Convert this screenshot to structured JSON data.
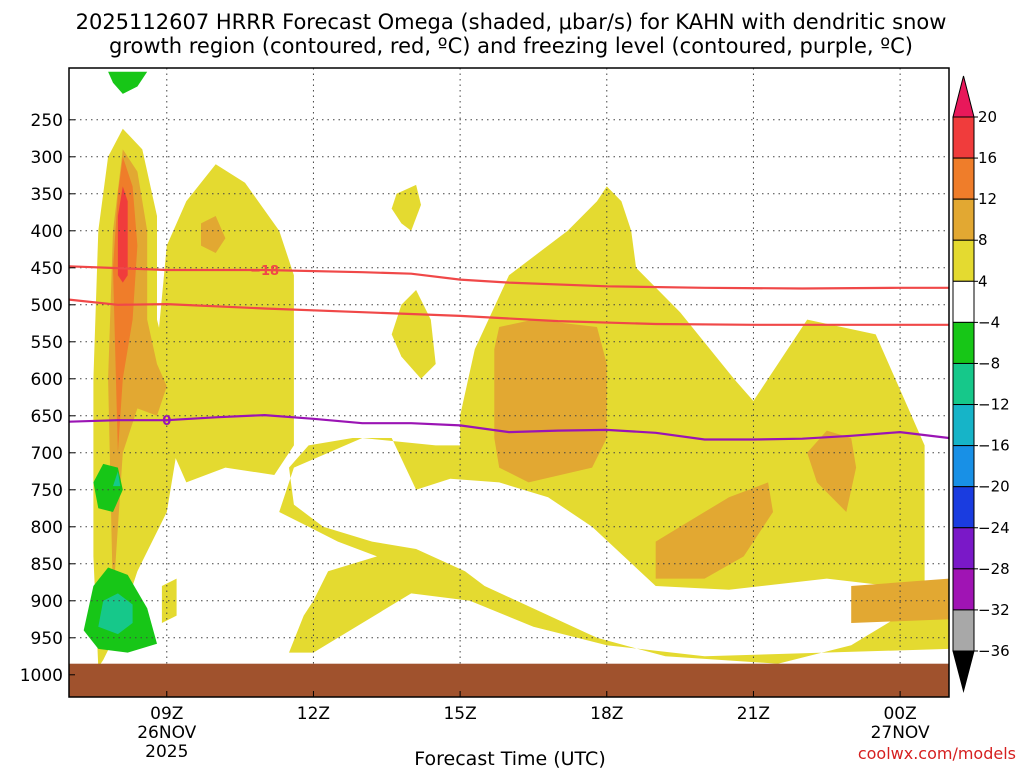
{
  "chart_data": {
    "type": "contour",
    "title_line1": "2025112607 HRRR Forecast Omega (shaded, μbar/s) for KAHN with dendritic snow",
    "title_line2": "growth region (contoured, red, ºC) and freezing level (contoured, purple, ºC)",
    "xlabel": "Forecast Time (UTC)",
    "ylabel": "",
    "x_unit": "hours after 07Z 26NOV2025",
    "xlim": [
      0,
      18
    ],
    "ylim": [
      1030,
      180
    ],
    "y_ticks": [
      250,
      300,
      350,
      400,
      450,
      500,
      550,
      600,
      650,
      700,
      750,
      800,
      850,
      900,
      950,
      1000
    ],
    "y_tick_labels": [
      "250",
      "300",
      "350",
      "400",
      "450",
      "500",
      "550",
      "600",
      "650",
      "700",
      "750",
      "800",
      "850",
      "900",
      "950",
      "1000"
    ],
    "x_ticks": [
      {
        "t": 2,
        "lines": [
          "09Z",
          "26NOV",
          "2025"
        ]
      },
      {
        "t": 5,
        "lines": [
          "12Z"
        ]
      },
      {
        "t": 8,
        "lines": [
          "15Z"
        ]
      },
      {
        "t": 11,
        "lines": [
          "18Z"
        ]
      },
      {
        "t": 14,
        "lines": [
          "21Z"
        ]
      },
      {
        "t": 17,
        "lines": [
          "00Z",
          "27NOV"
        ]
      }
    ],
    "ground_level_hpa": 985,
    "colorbar": {
      "labels": [
        "20",
        "16",
        "12",
        "8",
        "4",
        "−4",
        "−8",
        "−12",
        "−16",
        "−20",
        "−24",
        "−28",
        "−32",
        "−36"
      ],
      "colors": [
        "#e8185a",
        "#f03c3c",
        "#ef7d2a",
        "#e2a832",
        "#e4da30",
        "#ffffff",
        "#17c617",
        "#16c88a",
        "#16b4c8",
        "#1890e6",
        "#1a3ce0",
        "#7a18c8",
        "#a014b4",
        "#a8a8a8",
        "#000000"
      ]
    },
    "omega_regions": [
      {
        "level": "4 to 8",
        "color": "#e4da30",
        "points": [
          [
            0.6,
            990
          ],
          [
            0.5,
            840
          ],
          [
            0.5,
            600
          ],
          [
            0.6,
            400
          ],
          [
            0.8,
            300
          ],
          [
            1.1,
            262
          ],
          [
            1.5,
            290
          ],
          [
            1.8,
            380
          ],
          [
            1.8,
            520
          ],
          [
            2.1,
            600
          ],
          [
            2.2,
            700
          ],
          [
            2.0,
            780
          ],
          [
            1.4,
            860
          ],
          [
            1.0,
            940
          ],
          [
            0.7,
            980
          ]
        ]
      },
      {
        "level": "4 to 8",
        "color": "#e4da30",
        "points": [
          [
            2.0,
            420
          ],
          [
            2.4,
            360
          ],
          [
            3.0,
            310
          ],
          [
            3.6,
            335
          ],
          [
            4.3,
            400
          ],
          [
            4.6,
            460
          ],
          [
            4.6,
            690
          ],
          [
            4.2,
            730
          ],
          [
            3.2,
            720
          ],
          [
            2.4,
            740
          ],
          [
            2.0,
            680
          ],
          [
            1.8,
            560
          ]
        ]
      },
      {
        "level": "4 to 8",
        "color": "#e4da30",
        "points": [
          [
            6.7,
            350
          ],
          [
            7.1,
            338
          ],
          [
            7.2,
            365
          ],
          [
            7.0,
            400
          ],
          [
            6.8,
            390
          ],
          [
            6.6,
            370
          ]
        ]
      },
      {
        "level": "4 to 8",
        "color": "#e4da30",
        "points": [
          [
            6.8,
            500
          ],
          [
            7.1,
            480
          ],
          [
            7.4,
            520
          ],
          [
            7.5,
            580
          ],
          [
            7.2,
            600
          ],
          [
            6.8,
            570
          ],
          [
            6.6,
            540
          ]
        ]
      },
      {
        "level": "4 to 8",
        "color": "#e4da30",
        "points": [
          [
            8.0,
            650
          ],
          [
            8.3,
            560
          ],
          [
            9.0,
            460
          ],
          [
            10.2,
            400
          ],
          [
            10.8,
            360
          ],
          [
            11.0,
            340
          ],
          [
            11.3,
            360
          ],
          [
            11.5,
            400
          ],
          [
            11.6,
            450
          ],
          [
            12.5,
            510
          ],
          [
            13.6,
            600
          ],
          [
            14.0,
            630
          ],
          [
            15.1,
            520
          ],
          [
            16.5,
            540
          ],
          [
            17.5,
            690
          ],
          [
            17.5,
            880
          ],
          [
            17.3,
            900
          ],
          [
            16.8,
            880
          ],
          [
            15.5,
            870
          ],
          [
            13.5,
            885
          ],
          [
            12.0,
            880
          ],
          [
            10.7,
            800
          ],
          [
            9.8,
            760
          ],
          [
            8.8,
            740
          ],
          [
            7.8,
            735
          ],
          [
            7.1,
            750
          ],
          [
            6.6,
            680
          ],
          [
            5.8,
            680
          ],
          [
            4.9,
            690
          ],
          [
            4.5,
            720
          ],
          [
            4.6,
            770
          ],
          [
            5.2,
            800
          ],
          [
            6.2,
            820
          ],
          [
            7.1,
            830
          ],
          [
            8.1,
            860
          ],
          [
            8.5,
            880
          ],
          [
            10.8,
            950
          ],
          [
            12.2,
            975
          ],
          [
            14.5,
            985
          ],
          [
            16.0,
            960
          ],
          [
            17.5,
            900
          ],
          [
            18,
            880
          ],
          [
            18,
            965
          ],
          [
            13,
            975
          ],
          [
            11,
            960
          ],
          [
            9.5,
            935
          ],
          [
            8.2,
            900
          ],
          [
            7,
            890
          ],
          [
            5.0,
            970
          ],
          [
            4.5,
            970
          ],
          [
            4.8,
            920
          ],
          [
            5.0,
            900
          ],
          [
            5.3,
            860
          ],
          [
            6.3,
            840
          ],
          [
            5.5,
            820
          ],
          [
            4.9,
            800
          ],
          [
            4.3,
            780
          ],
          [
            4.6,
            720
          ],
          [
            6.0,
            680
          ],
          [
            7.5,
            690
          ],
          [
            8.0,
            690
          ]
        ]
      },
      {
        "level": "4 to 8",
        "color": "#e4da30",
        "points": [
          [
            1.9,
            880
          ],
          [
            2.2,
            870
          ],
          [
            2.2,
            920
          ],
          [
            1.9,
            930
          ]
        ]
      },
      {
        "level": "8 to 12",
        "color": "#e2a832",
        "points": [
          [
            0.9,
            900
          ],
          [
            0.8,
            600
          ],
          [
            0.9,
            400
          ],
          [
            1.1,
            290
          ],
          [
            1.4,
            320
          ],
          [
            1.6,
            400
          ],
          [
            1.6,
            520
          ],
          [
            1.8,
            580
          ],
          [
            2.0,
            610
          ],
          [
            1.8,
            650
          ],
          [
            1.4,
            640
          ],
          [
            1.1,
            700
          ]
        ]
      },
      {
        "level": "8 to 12",
        "color": "#e2a832",
        "points": [
          [
            2.7,
            390
          ],
          [
            3.0,
            380
          ],
          [
            3.2,
            410
          ],
          [
            3.0,
            430
          ],
          [
            2.7,
            420
          ]
        ]
      },
      {
        "level": "8 to 12",
        "color": "#e2a832",
        "points": [
          [
            8.7,
            560
          ],
          [
            8.8,
            530
          ],
          [
            9.5,
            520
          ],
          [
            10.8,
            530
          ],
          [
            11.0,
            580
          ],
          [
            11.0,
            680
          ],
          [
            10.7,
            720
          ],
          [
            9.4,
            740
          ],
          [
            8.8,
            720
          ],
          [
            8.7,
            680
          ]
        ]
      },
      {
        "level": "8 to 12",
        "color": "#e2a832",
        "points": [
          [
            12.0,
            820
          ],
          [
            12.5,
            800
          ],
          [
            13.5,
            760
          ],
          [
            14.3,
            740
          ],
          [
            14.4,
            780
          ],
          [
            13.8,
            840
          ],
          [
            13.0,
            870
          ],
          [
            12.0,
            870
          ]
        ]
      },
      {
        "level": "8 to 12",
        "color": "#e2a832",
        "points": [
          [
            15.1,
            700
          ],
          [
            15.5,
            670
          ],
          [
            16.0,
            680
          ],
          [
            16.1,
            720
          ],
          [
            15.9,
            780
          ],
          [
            15.3,
            740
          ]
        ]
      },
      {
        "level": "8 to 12",
        "color": "#e2a832",
        "points": [
          [
            16.0,
            880
          ],
          [
            18,
            870
          ],
          [
            18,
            925
          ],
          [
            16.0,
            930
          ]
        ]
      },
      {
        "level": "12 to 16",
        "color": "#ef7d2a",
        "points": [
          [
            1.0,
            700
          ],
          [
            0.9,
            450
          ],
          [
            1.0,
            350
          ],
          [
            1.1,
            300
          ],
          [
            1.3,
            340
          ],
          [
            1.4,
            420
          ],
          [
            1.3,
            520
          ],
          [
            1.1,
            600
          ]
        ]
      },
      {
        "level": "16 to 20",
        "color": "#f03c3c",
        "points": [
          [
            1.0,
            460
          ],
          [
            1.0,
            380
          ],
          [
            1.1,
            340
          ],
          [
            1.2,
            360
          ],
          [
            1.2,
            460
          ],
          [
            1.1,
            470
          ]
        ]
      },
      {
        "level": "-8 to -4",
        "color": "#17c617",
        "points": [
          [
            0.8,
            185
          ],
          [
            1.6,
            185
          ],
          [
            1.4,
            205
          ],
          [
            1.1,
            215
          ],
          [
            0.9,
            200
          ]
        ]
      },
      {
        "level": "-8 to -4",
        "color": "#17c617",
        "points": [
          [
            0.5,
            740
          ],
          [
            0.7,
            715
          ],
          [
            1.0,
            720
          ],
          [
            1.1,
            750
          ],
          [
            0.9,
            780
          ],
          [
            0.6,
            775
          ]
        ]
      },
      {
        "level": "-8 to -4",
        "color": "#17c617",
        "points": [
          [
            0.3,
            940
          ],
          [
            0.5,
            880
          ],
          [
            0.8,
            855
          ],
          [
            1.2,
            865
          ],
          [
            1.6,
            910
          ],
          [
            1.8,
            958
          ],
          [
            1.2,
            970
          ],
          [
            0.6,
            965
          ]
        ]
      },
      {
        "level": "-12 to -8",
        "color": "#16c88a",
        "points": [
          [
            0.6,
            935
          ],
          [
            0.7,
            900
          ],
          [
            1.0,
            890
          ],
          [
            1.3,
            905
          ],
          [
            1.3,
            930
          ],
          [
            1.0,
            945
          ]
        ]
      },
      {
        "level": "-12 to -8",
        "color": "#16c88a",
        "points": [
          [
            0.9,
            745
          ],
          [
            1.0,
            725
          ],
          [
            1.05,
            745
          ]
        ]
      }
    ],
    "contours": [
      {
        "name": "-18 °C isotherm",
        "label": "−18",
        "label_t": 4.0,
        "color": "#f04848",
        "points": [
          [
            0,
            448
          ],
          [
            2,
            453
          ],
          [
            4,
            453
          ],
          [
            6,
            456
          ],
          [
            7,
            458
          ],
          [
            8,
            466
          ],
          [
            9,
            470
          ],
          [
            11,
            475
          ],
          [
            13,
            477
          ],
          [
            15,
            478
          ],
          [
            17,
            477
          ],
          [
            18,
            477
          ]
        ]
      },
      {
        "name": "-12 °C isotherm",
        "label": "",
        "label_t": null,
        "color": "#f04848",
        "points": [
          [
            0,
            493
          ],
          [
            1,
            500
          ],
          [
            2,
            499
          ],
          [
            4,
            505
          ],
          [
            6,
            510
          ],
          [
            8,
            515
          ],
          [
            10,
            522
          ],
          [
            12,
            526
          ],
          [
            14,
            527
          ],
          [
            16,
            527
          ],
          [
            18,
            527
          ]
        ]
      },
      {
        "name": "0 °C freezing level",
        "label": "0",
        "label_t": 2.0,
        "color": "#9a14b4",
        "points": [
          [
            0,
            658
          ],
          [
            1,
            656
          ],
          [
            2,
            656
          ],
          [
            3,
            652
          ],
          [
            4,
            649
          ],
          [
            5,
            654
          ],
          [
            6,
            660
          ],
          [
            7,
            660
          ],
          [
            8,
            663
          ],
          [
            9,
            672
          ],
          [
            10,
            670
          ],
          [
            11,
            669
          ],
          [
            12,
            673
          ],
          [
            13,
            682
          ],
          [
            14,
            682
          ],
          [
            15,
            681
          ],
          [
            16,
            677
          ],
          [
            17,
            672
          ],
          [
            18,
            680
          ]
        ]
      }
    ]
  },
  "credit": "coolwx.com/models"
}
